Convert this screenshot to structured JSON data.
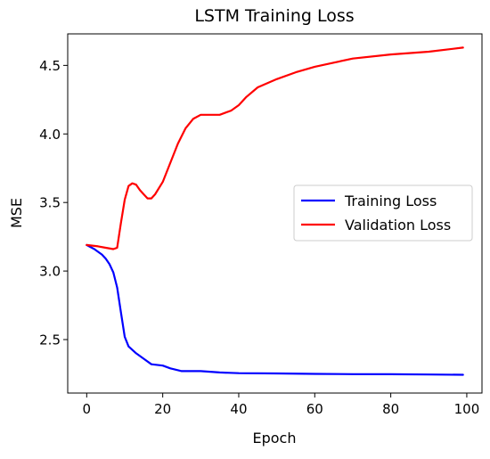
{
  "chart_data": {
    "type": "line",
    "title": "LSTM Training Loss",
    "xlabel": "Epoch",
    "ylabel": "MSE",
    "xlim": [
      -5,
      104
    ],
    "ylim": [
      2.11,
      4.73
    ],
    "xticks": [
      {
        "value": 0,
        "label": "0"
      },
      {
        "value": 20,
        "label": "20"
      },
      {
        "value": 40,
        "label": "40"
      },
      {
        "value": 60,
        "label": "60"
      },
      {
        "value": 80,
        "label": "80"
      },
      {
        "value": 100,
        "label": "100"
      }
    ],
    "yticks": [
      {
        "value": 2.5,
        "label": "2.5"
      },
      {
        "value": 3.0,
        "label": "3.0"
      },
      {
        "value": 3.5,
        "label": "3.5"
      },
      {
        "value": 4.0,
        "label": "4.0"
      },
      {
        "value": 4.5,
        "label": "4.5"
      }
    ],
    "grid": false,
    "legend_position": "center-right",
    "series": [
      {
        "name": "Training Loss",
        "color": "#0000ff",
        "x": [
          0,
          2,
          4,
          5,
          6,
          7,
          8,
          9,
          10,
          11,
          13,
          15,
          17,
          20,
          22,
          25,
          30,
          35,
          40,
          50,
          60,
          70,
          80,
          90,
          99
        ],
        "y": [
          3.19,
          3.16,
          3.12,
          3.09,
          3.05,
          2.99,
          2.88,
          2.7,
          2.52,
          2.45,
          2.4,
          2.36,
          2.32,
          2.31,
          2.29,
          2.27,
          2.27,
          2.26,
          2.255,
          2.253,
          2.25,
          2.248,
          2.247,
          2.245,
          2.243
        ]
      },
      {
        "name": "Validation Loss",
        "color": "#ff0000",
        "x": [
          0,
          3,
          5,
          7,
          8,
          9,
          10,
          11,
          12,
          13,
          14,
          15,
          16,
          17,
          18,
          20,
          22,
          24,
          26,
          28,
          30,
          32,
          35,
          38,
          40,
          42,
          45,
          50,
          55,
          60,
          65,
          70,
          80,
          90,
          99
        ],
        "y": [
          3.19,
          3.18,
          3.17,
          3.16,
          3.17,
          3.35,
          3.52,
          3.62,
          3.64,
          3.63,
          3.59,
          3.56,
          3.53,
          3.53,
          3.56,
          3.65,
          3.79,
          3.93,
          4.04,
          4.11,
          4.14,
          4.14,
          4.14,
          4.17,
          4.21,
          4.27,
          4.34,
          4.4,
          4.45,
          4.49,
          4.52,
          4.55,
          4.58,
          4.6,
          4.63
        ]
      }
    ]
  }
}
